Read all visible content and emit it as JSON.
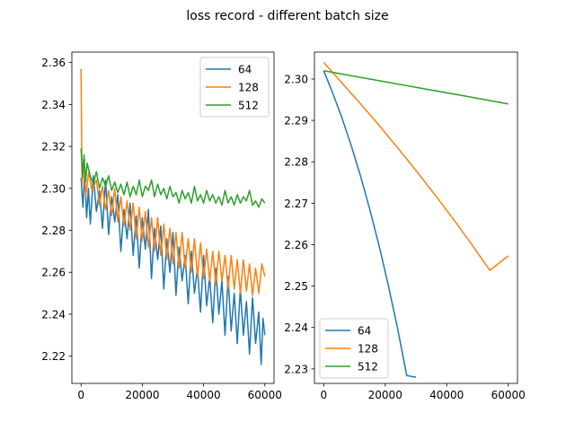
{
  "figure": {
    "suptitle": "loss record - different batch size"
  },
  "chart_data": [
    {
      "type": "line",
      "title": "",
      "xlabel": "",
      "ylabel": "",
      "xlim": [
        -3000,
        63000
      ],
      "ylim": [
        2.207,
        2.365
      ],
      "xticks": [
        0,
        20000,
        40000,
        60000
      ],
      "xtick_labels": [
        "0",
        "20000",
        "40000",
        "60000"
      ],
      "yticks": [
        2.22,
        2.24,
        2.26,
        2.28,
        2.3,
        2.32,
        2.34,
        2.36
      ],
      "ytick_labels": [
        "2.22",
        "2.24",
        "2.26",
        "2.28",
        "2.30",
        "2.32",
        "2.34",
        "2.36"
      ],
      "grid": false,
      "legend_position": "top-right",
      "series": [
        {
          "name": "64",
          "color": "#1f77b4",
          "x": [
            0,
            600,
            1200,
            1800,
            2400,
            3000,
            4000,
            5000,
            6000,
            7000,
            8000,
            9000,
            10000,
            11000,
            12000,
            13000,
            14000,
            15000,
            16000,
            17000,
            18000,
            19000,
            20000,
            21000,
            22000,
            23000,
            24000,
            25000,
            26000,
            27000,
            28000,
            29000,
            30000,
            31000,
            32000,
            33000,
            34000,
            35000,
            36000,
            37000,
            38000,
            39000,
            40000,
            41000,
            42000,
            43000,
            44000,
            45000,
            46000,
            47000,
            48000,
            49000,
            50000,
            51000,
            52000,
            53000,
            54000,
            55000,
            56000,
            57000,
            58000,
            58800,
            59400,
            60000
          ],
          "values": [
            2.305,
            2.291,
            2.308,
            2.286,
            2.3,
            2.283,
            2.306,
            2.289,
            2.299,
            2.281,
            2.304,
            2.278,
            2.296,
            2.284,
            2.297,
            2.27,
            2.29,
            2.276,
            2.293,
            2.268,
            2.287,
            2.262,
            2.286,
            2.271,
            2.29,
            2.257,
            2.281,
            2.266,
            2.282,
            2.252,
            2.276,
            2.26,
            2.279,
            2.249,
            2.272,
            2.256,
            2.268,
            2.245,
            2.27,
            2.25,
            2.262,
            2.241,
            2.268,
            2.244,
            2.258,
            2.236,
            2.262,
            2.24,
            2.256,
            2.23,
            2.258,
            2.232,
            2.25,
            2.226,
            2.252,
            2.23,
            2.246,
            2.221,
            2.248,
            2.226,
            2.241,
            2.216,
            2.238,
            2.23
          ]
        },
        {
          "name": "128",
          "color": "#ff7f0e",
          "x": [
            0,
            300,
            800,
            1500,
            2500,
            3500,
            5000,
            6000,
            7000,
            8000,
            9000,
            10000,
            11000,
            12000,
            13000,
            14000,
            15000,
            16000,
            17000,
            18000,
            19000,
            20000,
            21000,
            22000,
            23000,
            24000,
            25000,
            26000,
            27000,
            28000,
            29000,
            30000,
            31000,
            32000,
            33000,
            34000,
            35000,
            36000,
            37000,
            38000,
            39000,
            40000,
            41000,
            42000,
            43000,
            44000,
            45000,
            46000,
            47000,
            48000,
            49000,
            50000,
            51000,
            52000,
            53000,
            54000,
            55000,
            56000,
            57000,
            58000,
            59000,
            60000
          ],
          "values": [
            2.357,
            2.302,
            2.314,
            2.296,
            2.308,
            2.299,
            2.304,
            2.292,
            2.301,
            2.29,
            2.299,
            2.287,
            2.3,
            2.284,
            2.296,
            2.282,
            2.294,
            2.28,
            2.293,
            2.276,
            2.291,
            2.275,
            2.289,
            2.272,
            2.286,
            2.27,
            2.286,
            2.268,
            2.283,
            2.266,
            2.281,
            2.264,
            2.279,
            2.262,
            2.279,
            2.262,
            2.276,
            2.26,
            2.276,
            2.258,
            2.274,
            2.257,
            2.271,
            2.256,
            2.27,
            2.254,
            2.27,
            2.256,
            2.268,
            2.252,
            2.268,
            2.252,
            2.266,
            2.25,
            2.266,
            2.251,
            2.264,
            2.249,
            2.262,
            2.25,
            2.264,
            2.258
          ]
        },
        {
          "name": "512",
          "color": "#2ca02c",
          "x": [
            0,
            500,
            1000,
            1500,
            2000,
            3000,
            4000,
            5000,
            6000,
            7000,
            8000,
            9000,
            10000,
            11000,
            12000,
            13000,
            14000,
            15000,
            16000,
            17000,
            18000,
            19000,
            20000,
            21000,
            22000,
            23000,
            24000,
            25000,
            26000,
            27000,
            28000,
            29000,
            30000,
            31000,
            32000,
            33000,
            34000,
            35000,
            36000,
            37000,
            38000,
            39000,
            40000,
            41000,
            42000,
            43000,
            44000,
            45000,
            46000,
            47000,
            48000,
            49000,
            50000,
            51000,
            52000,
            53000,
            54000,
            55000,
            56000,
            57000,
            58000,
            59000,
            60000
          ],
          "values": [
            2.319,
            2.305,
            2.316,
            2.303,
            2.312,
            2.306,
            2.302,
            2.308,
            2.3,
            2.305,
            2.301,
            2.306,
            2.299,
            2.303,
            2.298,
            2.302,
            2.297,
            2.303,
            2.296,
            2.301,
            2.297,
            2.304,
            2.296,
            2.301,
            2.299,
            2.304,
            2.296,
            2.302,
            2.297,
            2.3,
            2.295,
            2.301,
            2.296,
            2.298,
            2.293,
            2.299,
            2.295,
            2.298,
            2.293,
            2.301,
            2.294,
            2.297,
            2.293,
            2.299,
            2.294,
            2.297,
            2.293,
            2.296,
            2.292,
            2.299,
            2.293,
            2.296,
            2.292,
            2.297,
            2.293,
            2.296,
            2.294,
            2.299,
            2.292,
            2.294,
            2.291,
            2.295,
            2.293
          ]
        }
      ]
    },
    {
      "type": "line",
      "title": "",
      "xlabel": "",
      "ylabel": "",
      "xlim": [
        -3000,
        63000
      ],
      "ylim": [
        2.2265,
        2.3065
      ],
      "xticks": [
        0,
        20000,
        40000,
        60000
      ],
      "xtick_labels": [
        "0",
        "20000",
        "40000",
        "60000"
      ],
      "yticks": [
        2.23,
        2.24,
        2.25,
        2.26,
        2.27,
        2.28,
        2.29,
        2.3
      ],
      "ytick_labels": [
        "2.23",
        "2.24",
        "2.25",
        "2.26",
        "2.27",
        "2.28",
        "2.29",
        "2.30"
      ],
      "grid": false,
      "legend_position": "bottom-left",
      "series": [
        {
          "name": "64",
          "color": "#1f77b4",
          "x": [
            0,
            3000,
            6000,
            9000,
            12000,
            15000,
            18000,
            21000,
            24000,
            27000,
            30000
          ],
          "values": [
            2.302,
            2.2965,
            2.2905,
            2.2838,
            2.2765,
            2.2685,
            2.2598,
            2.2502,
            2.2398,
            2.2284,
            2.228
          ]
        },
        {
          "name": "128",
          "color": "#ff7f0e",
          "x": [
            0,
            6000,
            12000,
            18000,
            24000,
            30000,
            36000,
            42000,
            48000,
            54000,
            60000
          ],
          "values": [
            2.304,
            2.299,
            2.294,
            2.2888,
            2.2834,
            2.2779,
            2.2722,
            2.2663,
            2.2602,
            2.2538,
            2.2573
          ]
        },
        {
          "name": "512",
          "color": "#2ca02c",
          "x": [
            0,
            15000,
            30000,
            45000,
            60000
          ],
          "values": [
            2.302,
            2.3,
            2.298,
            2.296,
            2.294
          ]
        }
      ]
    }
  ]
}
